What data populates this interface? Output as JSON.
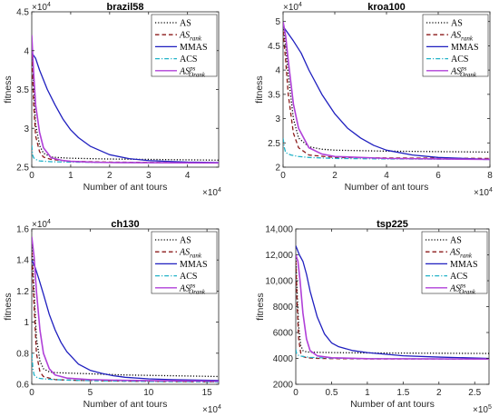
{
  "chart_data": [
    {
      "type": "line",
      "title": "brazil58",
      "xlabel": "Number of ant tours",
      "ylabel": "fitness",
      "x_multiplier": "×10^4",
      "y_multiplier": "×10^4",
      "xlim": [
        0,
        4.8
      ],
      "ylim": [
        2.5,
        4.5
      ],
      "xticks": [
        0,
        1,
        2,
        3,
        4
      ],
      "xtick_labels": [
        "0",
        "1",
        "2",
        "3",
        "4"
      ],
      "yticks": [
        2.5,
        3,
        3.5,
        4,
        4.5
      ],
      "ytick_labels": [
        "2.5",
        "3",
        "3.5",
        "4",
        "4.5"
      ],
      "grid": false,
      "legend_position": "top-right",
      "series": [
        {
          "name": "AS",
          "color": "#000000",
          "dash": "dotted",
          "x": [
            0,
            0.05,
            0.1,
            0.2,
            0.3,
            0.5,
            0.8,
            1.0,
            2.0,
            3.0,
            4.8
          ],
          "y": [
            4.15,
            3.5,
            3.05,
            2.78,
            2.68,
            2.63,
            2.62,
            2.615,
            2.605,
            2.6,
            2.59
          ]
        },
        {
          "name": "AS_rank",
          "color": "#8b1a1a",
          "dash": "dashed",
          "x": [
            0,
            0.05,
            0.1,
            0.2,
            0.3,
            0.5,
            1.0,
            2.0,
            4.8
          ],
          "y": [
            3.95,
            3.3,
            2.9,
            2.7,
            2.63,
            2.6,
            2.575,
            2.565,
            2.555
          ]
        },
        {
          "name": "MMAS",
          "color": "#1f1fbf",
          "dash": "solid",
          "x": [
            0,
            0.1,
            0.2,
            0.4,
            0.6,
            0.8,
            1.0,
            1.2,
            1.5,
            2.0,
            2.5,
            3.0,
            3.5,
            4.0,
            4.8
          ],
          "y": [
            3.97,
            3.9,
            3.75,
            3.5,
            3.3,
            3.12,
            2.98,
            2.88,
            2.77,
            2.66,
            2.61,
            2.585,
            2.575,
            2.565,
            2.56
          ]
        },
        {
          "name": "ACS",
          "color": "#20b2c8",
          "dash": "dashdot",
          "x": [
            0,
            0.02,
            0.05,
            0.1,
            0.2,
            0.5,
            1.0,
            2.0,
            4.8
          ],
          "y": [
            2.78,
            2.66,
            2.62,
            2.6,
            2.58,
            2.57,
            2.565,
            2.56,
            2.555
          ]
        },
        {
          "name": "AS_Orank^ps",
          "color": "#b040d8",
          "dash": "solid",
          "x": [
            0,
            0.05,
            0.1,
            0.2,
            0.3,
            0.5,
            0.8,
            1.0,
            1.5,
            2.0,
            4.8
          ],
          "y": [
            4.2,
            3.7,
            3.3,
            2.95,
            2.75,
            2.62,
            2.585,
            2.575,
            2.565,
            2.56,
            2.555
          ]
        }
      ]
    },
    {
      "type": "line",
      "title": "kroa100",
      "xlabel": "Number of ant tours",
      "ylabel": "fitness",
      "x_multiplier": "×10^4",
      "y_multiplier": "×10^4",
      "xlim": [
        0,
        8
      ],
      "ylim": [
        2.0,
        5.2
      ],
      "xticks": [
        0,
        2,
        4,
        6,
        8
      ],
      "xtick_labels": [
        "0",
        "2",
        "4",
        "6",
        "8"
      ],
      "yticks": [
        2,
        2.5,
        3,
        3.5,
        4,
        4.5,
        5
      ],
      "ytick_labels": [
        "2",
        "2.5",
        "3",
        "3.5",
        "4",
        "4.5",
        "5"
      ],
      "grid": false,
      "legend_position": "top-right",
      "series": [
        {
          "name": "AS",
          "color": "#000000",
          "dash": "dotted",
          "x": [
            0,
            0.1,
            0.2,
            0.4,
            0.6,
            1.0,
            1.5,
            2.0,
            4.0,
            6.0,
            8.0
          ],
          "y": [
            4.9,
            4.5,
            3.9,
            3.0,
            2.6,
            2.42,
            2.37,
            2.35,
            2.33,
            2.32,
            2.31
          ]
        },
        {
          "name": "AS_rank",
          "color": "#8b1a1a",
          "dash": "dashed",
          "x": [
            0,
            0.1,
            0.2,
            0.4,
            0.6,
            1.0,
            2.0,
            4.0,
            8.0
          ],
          "y": [
            4.8,
            4.2,
            3.5,
            2.7,
            2.4,
            2.25,
            2.2,
            2.19,
            2.18
          ]
        },
        {
          "name": "MMAS",
          "color": "#1f1fbf",
          "dash": "solid",
          "x": [
            0,
            0.2,
            0.4,
            0.7,
            1.0,
            1.5,
            2.0,
            2.5,
            3.0,
            3.5,
            4.0,
            5.0,
            6.0,
            7.0,
            8.0
          ],
          "y": [
            4.9,
            4.75,
            4.6,
            4.35,
            4.0,
            3.5,
            3.1,
            2.8,
            2.6,
            2.45,
            2.35,
            2.25,
            2.2,
            2.18,
            2.16
          ]
        },
        {
          "name": "ACS",
          "color": "#20b2c8",
          "dash": "dashdot",
          "x": [
            0,
            0.05,
            0.1,
            0.3,
            0.6,
            1.0,
            2.0,
            4.0,
            8.0
          ],
          "y": [
            2.6,
            2.4,
            2.3,
            2.25,
            2.22,
            2.2,
            2.18,
            2.17,
            2.16
          ]
        },
        {
          "name": "AS_Orank^ps",
          "color": "#b040d8",
          "dash": "solid",
          "x": [
            0,
            0.1,
            0.2,
            0.4,
            0.6,
            1.0,
            1.5,
            2.0,
            4.0,
            8.0
          ],
          "y": [
            5.0,
            4.7,
            4.2,
            3.3,
            2.8,
            2.4,
            2.27,
            2.22,
            2.18,
            2.16
          ]
        }
      ]
    },
    {
      "type": "line",
      "title": "ch130",
      "xlabel": "Number of ant tours",
      "ylabel": "fitness",
      "x_multiplier": "×10^4",
      "y_multiplier": "×10^4",
      "xlim": [
        0,
        16
      ],
      "ylim": [
        0.6,
        1.6
      ],
      "xticks": [
        0,
        5,
        10,
        15
      ],
      "xtick_labels": [
        "0",
        "5",
        "10",
        "15"
      ],
      "yticks": [
        0.6,
        0.8,
        1.0,
        1.2,
        1.4,
        1.6
      ],
      "ytick_labels": [
        "0.6",
        "0.8",
        "1",
        "1.2",
        "1.4",
        "1.6"
      ],
      "grid": false,
      "legend_position": "top-right",
      "series": [
        {
          "name": "AS",
          "color": "#000000",
          "dash": "dotted",
          "x": [
            0,
            0.2,
            0.4,
            0.7,
            1.0,
            1.5,
            2.0,
            4.0,
            8.0,
            12.0,
            16.0
          ],
          "y": [
            1.5,
            1.2,
            0.9,
            0.75,
            0.7,
            0.68,
            0.675,
            0.67,
            0.66,
            0.655,
            0.65
          ]
        },
        {
          "name": "AS_rank",
          "color": "#8b1a1a",
          "dash": "dashed",
          "x": [
            0,
            0.2,
            0.4,
            0.7,
            1.0,
            2.0,
            4.0,
            8.0,
            16.0
          ],
          "y": [
            1.45,
            1.1,
            0.8,
            0.68,
            0.65,
            0.63,
            0.625,
            0.62,
            0.615
          ]
        },
        {
          "name": "MMAS",
          "color": "#1f1fbf",
          "dash": "solid",
          "x": [
            0,
            0.3,
            0.6,
            1.0,
            1.5,
            2.0,
            2.5,
            3.0,
            4.0,
            5.0,
            6.0,
            7.0,
            8.0,
            10.0,
            12.0,
            16.0
          ],
          "y": [
            1.4,
            1.35,
            1.28,
            1.18,
            1.05,
            0.95,
            0.87,
            0.81,
            0.73,
            0.69,
            0.67,
            0.655,
            0.645,
            0.635,
            0.63,
            0.625
          ]
        },
        {
          "name": "ACS",
          "color": "#20b2c8",
          "dash": "dashdot",
          "x": [
            0,
            0.1,
            0.2,
            0.5,
            1.0,
            2.0,
            4.0,
            8.0,
            16.0
          ],
          "y": [
            0.8,
            0.7,
            0.66,
            0.64,
            0.635,
            0.63,
            0.625,
            0.62,
            0.615
          ]
        },
        {
          "name": "AS_Orank^ps",
          "color": "#b040d8",
          "dash": "solid",
          "x": [
            0,
            0.2,
            0.4,
            0.7,
            1.0,
            1.5,
            2.0,
            3.0,
            5.0,
            8.0,
            16.0
          ],
          "y": [
            1.55,
            1.42,
            1.2,
            0.95,
            0.8,
            0.7,
            0.66,
            0.64,
            0.63,
            0.625,
            0.62
          ]
        }
      ]
    },
    {
      "type": "line",
      "title": "tsp225",
      "xlabel": "Number of ant tours",
      "ylabel": "fitness",
      "x_multiplier": "×10^5",
      "y_multiplier": "",
      "xlim": [
        0,
        2.7
      ],
      "ylim": [
        2000,
        14000
      ],
      "xticks": [
        0,
        0.5,
        1,
        1.5,
        2,
        2.5
      ],
      "xtick_labels": [
        "0",
        "0.5",
        "1",
        "1.5",
        "2",
        "2.5"
      ],
      "yticks": [
        2000,
        4000,
        6000,
        8000,
        10000,
        12000,
        14000
      ],
      "ytick_labels": [
        "2000",
        "4000",
        "6000",
        "8000",
        "10,000",
        "12,000",
        "14,000"
      ],
      "grid": false,
      "legend_position": "top-right",
      "series": [
        {
          "name": "AS",
          "color": "#000000",
          "dash": "dotted",
          "x": [
            0,
            0.02,
            0.04,
            0.07,
            0.1,
            0.15,
            0.2,
            0.5,
            1.0,
            2.0,
            2.7
          ],
          "y": [
            12000,
            9000,
            6500,
            5000,
            4600,
            4500,
            4480,
            4450,
            4420,
            4400,
            4380
          ]
        },
        {
          "name": "AS_rank",
          "color": "#8b1a1a",
          "dash": "dashed",
          "x": [
            0,
            0.02,
            0.04,
            0.07,
            0.1,
            0.15,
            0.3,
            0.6,
            1.0,
            2.7
          ],
          "y": [
            11500,
            8000,
            5500,
            4400,
            4150,
            4050,
            4000,
            3980,
            3960,
            3950
          ]
        },
        {
          "name": "MMAS",
          "color": "#1f1fbf",
          "dash": "solid",
          "x": [
            0,
            0.05,
            0.1,
            0.15,
            0.2,
            0.3,
            0.4,
            0.5,
            0.6,
            0.8,
            1.0,
            1.5,
            2.0,
            2.7
          ],
          "y": [
            12700,
            12000,
            11500,
            10500,
            9200,
            7200,
            5900,
            5200,
            4900,
            4600,
            4450,
            4200,
            4100,
            4000
          ]
        },
        {
          "name": "ACS",
          "color": "#20b2c8",
          "dash": "dashdot",
          "x": [
            0,
            0.01,
            0.02,
            0.05,
            0.1,
            0.2,
            0.5,
            1.0,
            2.7
          ],
          "y": [
            4700,
            4400,
            4300,
            4200,
            4150,
            4080,
            4020,
            3980,
            3950
          ]
        },
        {
          "name": "AS_Orank^ps",
          "color": "#b040d8",
          "dash": "solid",
          "x": [
            0,
            0.03,
            0.06,
            0.1,
            0.15,
            0.2,
            0.3,
            0.5,
            1.0,
            2.7
          ],
          "y": [
            12000,
            11500,
            10000,
            7500,
            5500,
            4600,
            4200,
            4050,
            3980,
            3950
          ]
        }
      ]
    }
  ],
  "legend": {
    "entries": [
      {
        "label": "AS",
        "sub": "",
        "sup": ""
      },
      {
        "label": "AS",
        "sub": "rank",
        "sup": ""
      },
      {
        "label": "MMAS",
        "sub": "",
        "sup": ""
      },
      {
        "label": "ACS",
        "sub": "",
        "sup": ""
      },
      {
        "label": "AS",
        "sub": "Orank",
        "sup": "ps"
      }
    ]
  }
}
